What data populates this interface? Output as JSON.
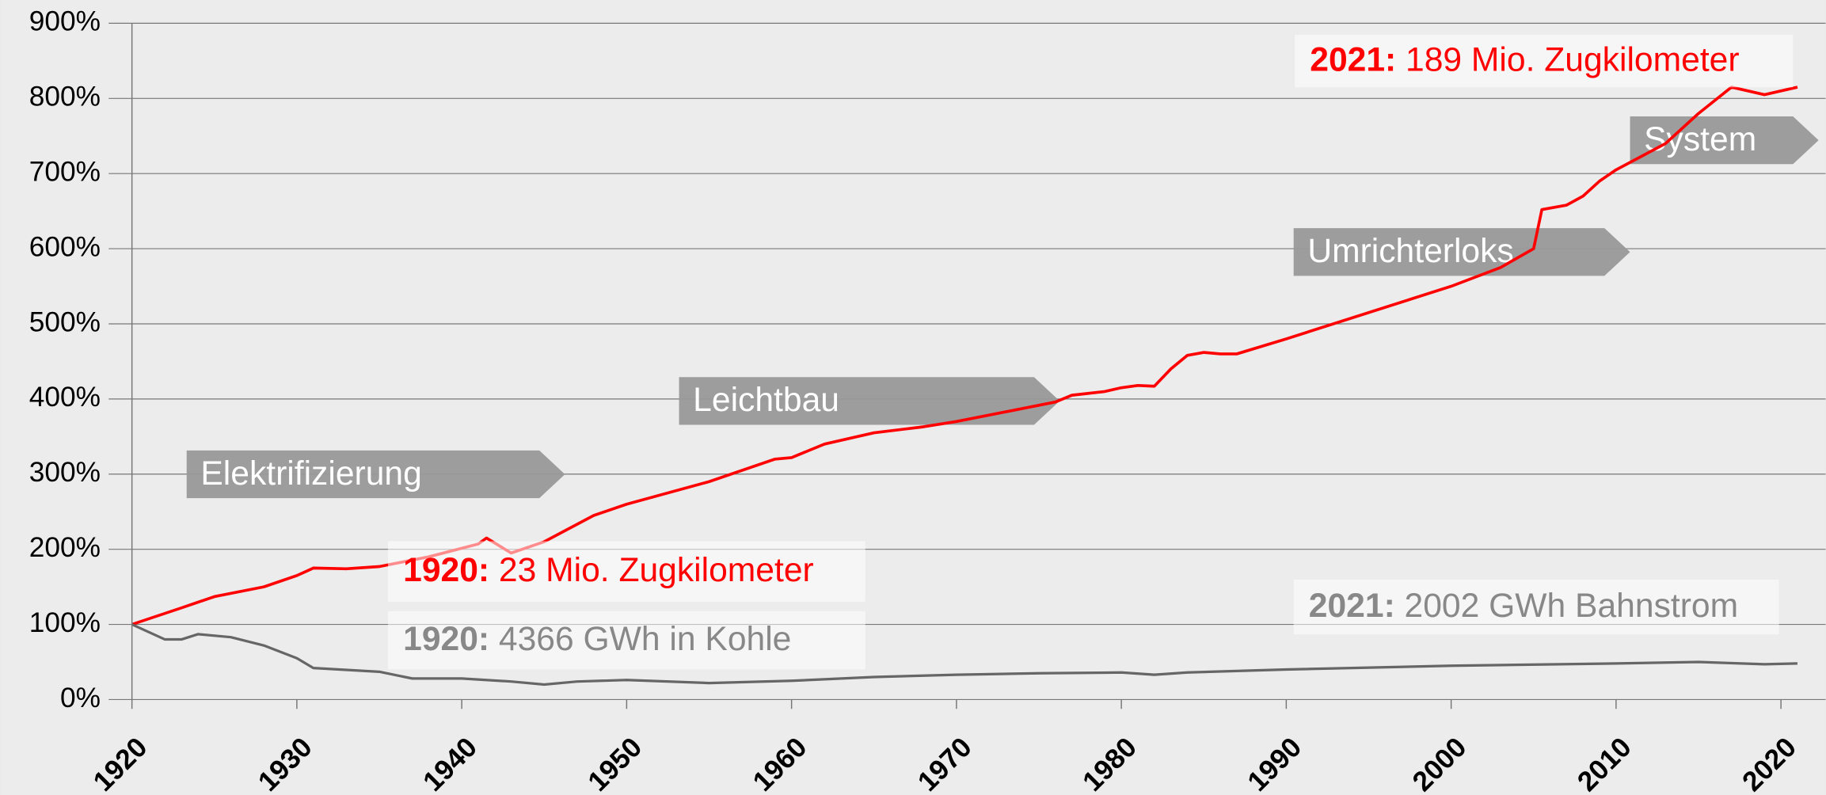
{
  "chart_data": {
    "type": "line",
    "xlim": [
      1920,
      2022
    ],
    "xticks": [
      1920,
      1930,
      1940,
      1950,
      1960,
      1970,
      1980,
      1990,
      2000,
      2010,
      2020
    ],
    "ylim": [
      0,
      900
    ],
    "yticks": [
      {
        "value": 0,
        "label": "0%"
      },
      {
        "value": 100,
        "label": "100%"
      },
      {
        "value": 200,
        "label": "200%"
      },
      {
        "value": 300,
        "label": "300%"
      },
      {
        "value": 400,
        "label": "400%"
      },
      {
        "value": 500,
        "label": "500%"
      },
      {
        "value": 600,
        "label": "600%"
      },
      {
        "value": 700,
        "label": "700%"
      },
      {
        "value": 800,
        "label": "800%"
      },
      {
        "value": 900,
        "label": "900%"
      }
    ],
    "grid": true,
    "series": [
      {
        "color": "#ff0000",
        "x": [
          1920,
          1923,
          1925,
          1928,
          1930,
          1931,
          1933,
          1935,
          1938,
          1941,
          1941.5,
          1943,
          1945,
          1948,
          1950,
          1955,
          1957,
          1959,
          1960,
          1962,
          1965,
          1968,
          1970,
          1976,
          1977,
          1979,
          1980,
          1981,
          1982,
          1983,
          1984,
          1985,
          1986,
          1987,
          1990,
          1995,
          2000,
          2003,
          2005,
          2005.5,
          2007,
          2008,
          2009,
          2010,
          2013,
          2015,
          2017,
          2019,
          2021
        ],
        "values": [
          100,
          122,
          137,
          150,
          165,
          175,
          174,
          177,
          190,
          207,
          215,
          195,
          210,
          245,
          260,
          290,
          305,
          320,
          322,
          340,
          355,
          363,
          370,
          396,
          405,
          410,
          415,
          418,
          417,
          440,
          458,
          462,
          460,
          460,
          480,
          515,
          550,
          575,
          600,
          652,
          658,
          670,
          690,
          705,
          740,
          780,
          815,
          805,
          815
        ]
      },
      {
        "color": "#666666",
        "x": [
          1920,
          1921,
          1922,
          1923,
          1924,
          1926,
          1928,
          1930,
          1931,
          1935,
          1937,
          1940,
          1943,
          1945,
          1947,
          1950,
          1955,
          1960,
          1965,
          1970,
          1975,
          1980,
          1982,
          1984,
          1990,
          2000,
          2010,
          2015,
          2019,
          2021
        ],
        "values": [
          100,
          90,
          80,
          80,
          87,
          83,
          72,
          55,
          42,
          37,
          28,
          28,
          24,
          20,
          24,
          26,
          22,
          25,
          30,
          33,
          35,
          36,
          33,
          36,
          40,
          45,
          48,
          50,
          47,
          48
        ]
      }
    ],
    "labels": [
      {
        "bold": "2021:",
        "text": "189 Mio. Zugkilometer",
        "color": "#ff0000"
      },
      {
        "bold": "1920:",
        "text": "23 Mio. Zugkilometer",
        "color": "#ff0000"
      },
      {
        "bold": "1920:",
        "text": "4366 GWh in Kohle",
        "color": "#888888"
      },
      {
        "bold": "2021:",
        "text": "2002 GWh Bahnstrom",
        "color": "#888888"
      }
    ],
    "phases": [
      "Elektrifizierung",
      "Leichtbau",
      "Umrichterloks",
      "System"
    ]
  }
}
